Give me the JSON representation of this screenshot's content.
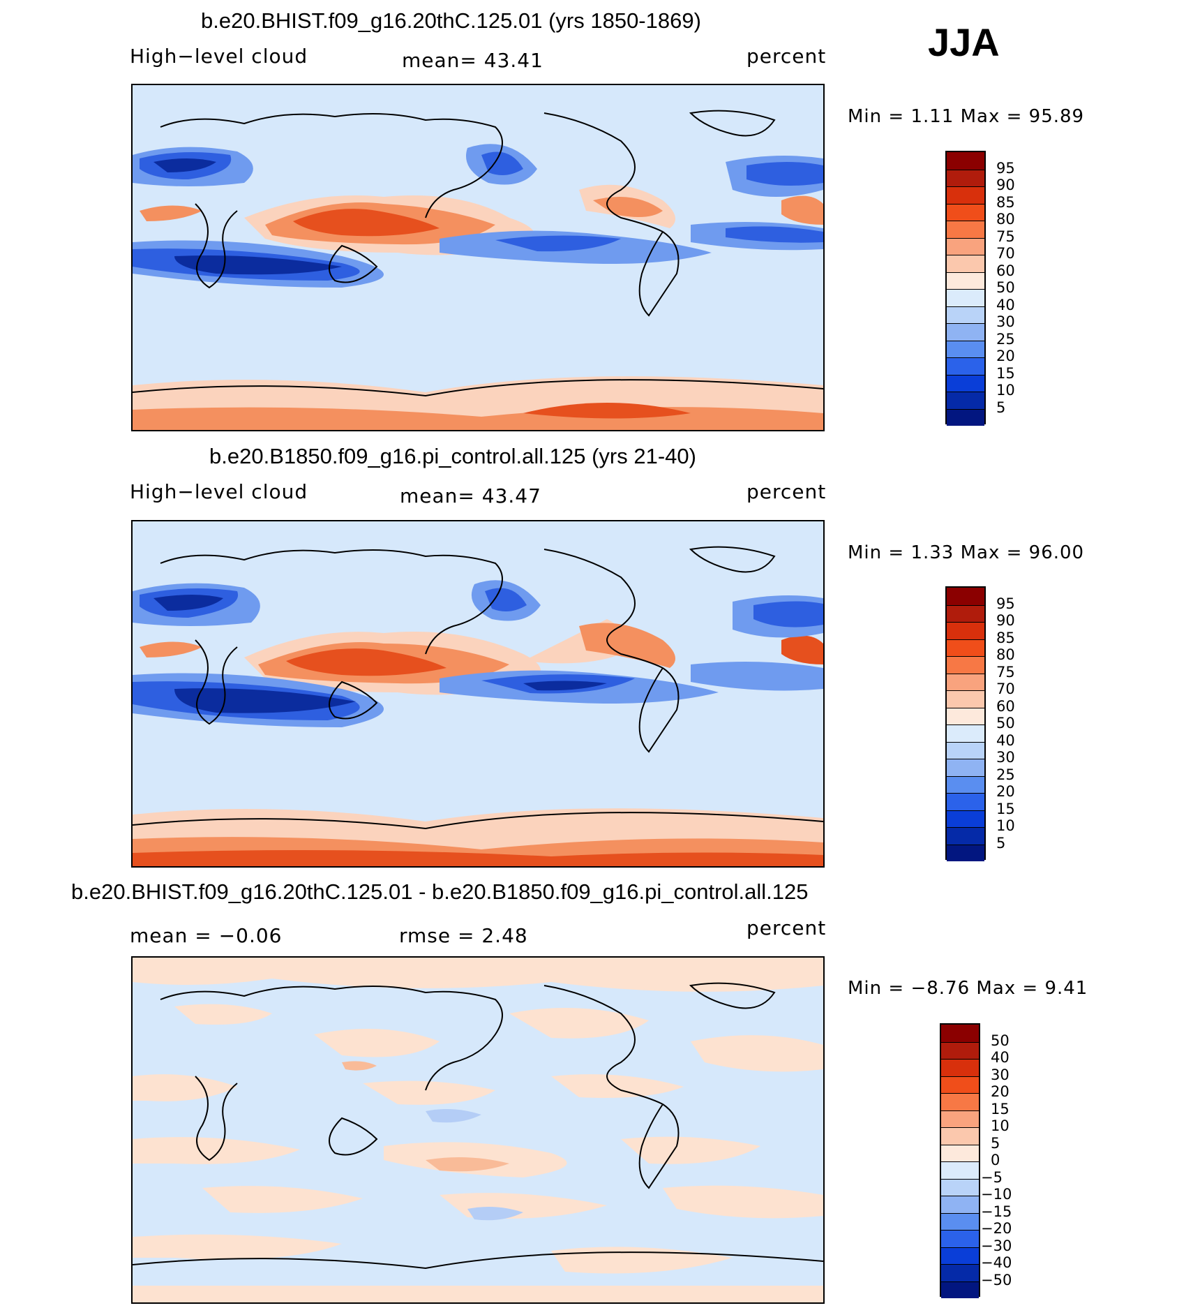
{
  "season": "JJA",
  "panels": [
    {
      "id": "case",
      "title": "b.e20.BHIST.f09_g16.20thC.125.01 (yrs 1850-1869)",
      "left_label": "High−level cloud",
      "center_label": "mean=   43.41",
      "right_label": "percent",
      "minmax": "Min =    1.11 Max =   95.89",
      "colorbar_labels": [
        "95",
        "90",
        "85",
        "80",
        "75",
        "70",
        "60",
        "50",
        "40",
        "30",
        "25",
        "20",
        "15",
        "10",
        "5"
      ],
      "colorbar_colors": [
        "#8b0000",
        "#b01c0c",
        "#d8300c",
        "#f04e1a",
        "#f77845",
        "#f9a37e",
        "#fbc8ad",
        "#fde9dc",
        "#dbebfb",
        "#b9d3f8",
        "#8fb3f3",
        "#5a8ef0",
        "#2b62ea",
        "#0a3ed8",
        "#052aa8",
        "#021680"
      ]
    },
    {
      "id": "control",
      "title": "b.e20.B1850.f09_g16.pi_control.all.125 (yrs 21-40)",
      "left_label": "High−level cloud",
      "center_label": "mean=   43.47",
      "right_label": "percent",
      "minmax": "Min =    1.33 Max =   96.00",
      "colorbar_labels": [
        "95",
        "90",
        "85",
        "80",
        "75",
        "70",
        "60",
        "50",
        "40",
        "30",
        "25",
        "20",
        "15",
        "10",
        "5"
      ],
      "colorbar_colors": [
        "#8b0000",
        "#b01c0c",
        "#d8300c",
        "#f04e1a",
        "#f77845",
        "#f9a37e",
        "#fbc8ad",
        "#fde9dc",
        "#dbebfb",
        "#b9d3f8",
        "#8fb3f3",
        "#5a8ef0",
        "#2b62ea",
        "#0a3ed8",
        "#052aa8",
        "#021680"
      ]
    },
    {
      "id": "diff",
      "title": "b.e20.BHIST.f09_g16.20thC.125.01 - b.e20.B1850.f09_g16.pi_control.all.125",
      "left_label": "mean =   −0.06",
      "center_label": "rmse =    2.48",
      "right_label": "percent",
      "minmax": "Min =   −8.76 Max =    9.41",
      "colorbar_labels": [
        "50",
        "40",
        "30",
        "20",
        "15",
        "10",
        "5",
        "0",
        "−5",
        "−10",
        "−15",
        "−20",
        "−30",
        "−40",
        "−50"
      ],
      "colorbar_colors": [
        "#8b0000",
        "#b01c0c",
        "#d8300c",
        "#f04e1a",
        "#f77845",
        "#f9a37e",
        "#fbc8ad",
        "#fde9dc",
        "#dbebfb",
        "#b9d3f8",
        "#8fb3f3",
        "#5a8ef0",
        "#2b62ea",
        "#0a3ed8",
        "#052aa8",
        "#021680"
      ]
    }
  ],
  "map_colors": {
    "background_light_blue": "#d6e8fb",
    "light_orange": "#fbd3bd",
    "orange": "#f4905f",
    "red_orange": "#e6501e",
    "mid_blue": "#6f9bef",
    "blue": "#2e5fe0",
    "dark_blue": "#0b2c9e",
    "coast": "#000000"
  }
}
